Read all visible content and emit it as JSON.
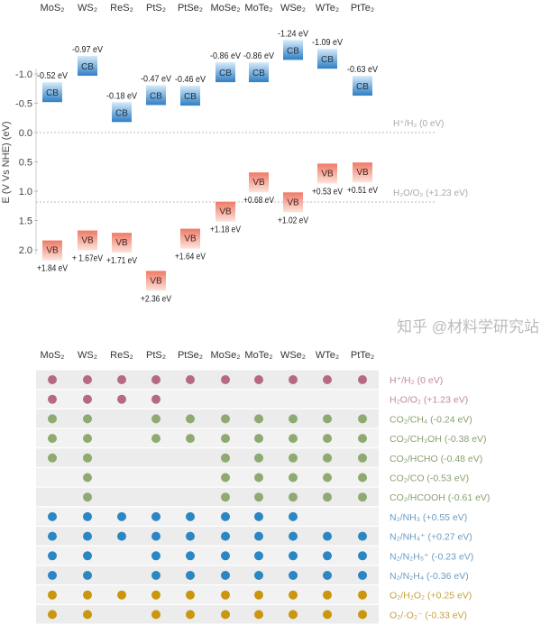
{
  "chart_data": [
    {
      "type": "bar",
      "ylabel": "E (V Vs NHE) (eV)",
      "ylim": [
        -1.3,
        2.5
      ],
      "yticks": [
        "-1.0",
        "-0.5",
        "0.0",
        "0.5",
        "1.0",
        "1.5",
        "2.0"
      ],
      "ytick_values": [
        -1.0,
        -0.5,
        0.0,
        0.5,
        1.0,
        1.5,
        2.0
      ],
      "y_inverted": true,
      "categories": [
        "MoS₂",
        "WS₂",
        "ReS₂",
        "PtS₂",
        "PtSe₂",
        "MoSe₂",
        "MoTe₂",
        "WSe₂",
        "WTe₂",
        "PtTe₂"
      ],
      "series": [
        {
          "name": "CB",
          "values": [
            -0.52,
            -0.97,
            -0.18,
            -0.47,
            -0.46,
            -0.86,
            -0.86,
            -1.24,
            -1.09,
            -0.63
          ],
          "labels": [
            "-0.52 eV",
            "-0.97 eV",
            "-0.18 eV",
            "-0.47 eV",
            "-0.46 eV",
            "-0.86 eV",
            "-0.86 eV",
            "-1.24 eV",
            "-1.09 eV",
            "-0.63 eV"
          ]
        },
        {
          "name": "VB",
          "values": [
            1.84,
            1.67,
            1.71,
            2.36,
            1.64,
            1.18,
            0.68,
            1.02,
            0.53,
            0.51
          ],
          "labels": [
            "+1.84 eV",
            "+ 1.67eV",
            "+1.71 eV",
            "+2.36 eV",
            "+1.64 eV",
            "+1.18 eV",
            "+0.68 eV",
            "+1.02 eV",
            "+0.53 eV",
            "+0.51 eV"
          ]
        }
      ],
      "reference_lines": [
        {
          "label": "H⁺/H₂ (0 eV)",
          "value": 0.0
        },
        {
          "label": "H₂O/O₂ (+1.23 eV)",
          "value": 1.23
        }
      ],
      "colors": {
        "CB": "#2f7fc4",
        "VB": "#ee7a66",
        "reference": "#bbbbbb"
      }
    },
    {
      "type": "table",
      "columns": [
        "MoS₂",
        "WS₂",
        "ReS₂",
        "PtS₂",
        "PtSe₂",
        "MoSe₂",
        "MoTe₂",
        "WSe₂",
        "WTe₂",
        "PtTe₂"
      ],
      "rows": [
        {
          "label": "H⁺/H₂ (0 eV)",
          "group": "h",
          "cells": [
            1,
            1,
            1,
            1,
            1,
            1,
            1,
            1,
            1,
            1
          ]
        },
        {
          "label": "H₂O/O₂ (+1.23 eV)",
          "group": "h",
          "cells": [
            1,
            1,
            1,
            1,
            0,
            0,
            0,
            0,
            0,
            0
          ]
        },
        {
          "label": "CO₂/CH₄ (-0.24 eV)",
          "group": "c",
          "cells": [
            1,
            1,
            0,
            1,
            1,
            1,
            1,
            1,
            1,
            1
          ]
        },
        {
          "label": "CO₂/CH₃OH (-0.38 eV)",
          "group": "c",
          "cells": [
            1,
            1,
            0,
            1,
            1,
            1,
            1,
            1,
            1,
            1
          ]
        },
        {
          "label": "CO₂/HCHO (-0.48 eV)",
          "group": "c",
          "cells": [
            1,
            1,
            0,
            0,
            0,
            1,
            1,
            1,
            1,
            1
          ]
        },
        {
          "label": "CO₂/CO (-0.53 eV)",
          "group": "c",
          "cells": [
            0,
            1,
            0,
            0,
            0,
            1,
            1,
            1,
            1,
            1
          ]
        },
        {
          "label": "CO₂/HCOOH (-0.61 eV)",
          "group": "c",
          "cells": [
            0,
            1,
            0,
            0,
            0,
            1,
            1,
            1,
            1,
            1
          ]
        },
        {
          "label": "N₂/NH₃ (+0.55 eV)",
          "group": "n",
          "cells": [
            1,
            1,
            1,
            1,
            1,
            1,
            1,
            1,
            0,
            0
          ]
        },
        {
          "label": "N₂/NH₄⁺ (+0.27 eV)",
          "group": "n",
          "cells": [
            1,
            1,
            1,
            1,
            1,
            1,
            1,
            1,
            1,
            1
          ]
        },
        {
          "label": "N₂/N₂H₅⁺ (-0.23 eV)",
          "group": "n",
          "cells": [
            1,
            1,
            0,
            1,
            1,
            1,
            1,
            1,
            1,
            1
          ]
        },
        {
          "label": "N₂/N₂H₄ (-0.36 eV)",
          "group": "n",
          "cells": [
            1,
            1,
            0,
            1,
            1,
            1,
            1,
            1,
            1,
            1
          ]
        },
        {
          "label": "O₂/H₂O₂ (+0.25 eV)",
          "group": "o",
          "cells": [
            1,
            1,
            1,
            1,
            1,
            1,
            1,
            1,
            1,
            1
          ]
        },
        {
          "label": "O₂/·O₂⁻ (-0.33 eV)",
          "group": "o",
          "cells": [
            1,
            1,
            0,
            1,
            1,
            1,
            1,
            1,
            1,
            1
          ]
        }
      ],
      "colors": {
        "h": "#b56a80",
        "c": "#8faa70",
        "n": "#2b86c4",
        "o": "#c9960e"
      },
      "label_colors": {
        "h": "#c08a9a",
        "c": "#8aa070",
        "n": "#6d9bc0",
        "o": "#c9a040"
      }
    }
  ],
  "watermark": "知乎 @材料学研究站"
}
